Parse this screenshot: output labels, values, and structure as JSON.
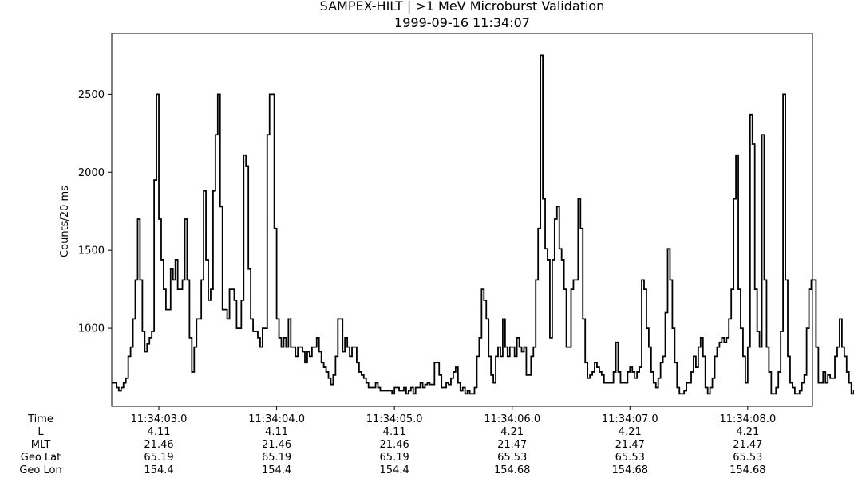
{
  "chart_data": {
    "type": "line",
    "step": true,
    "title": "SAMPEX-HILT | >1 MeV Microburst Validation",
    "subtitle": "1999-09-16 11:34:07",
    "xlabel": "",
    "ylabel": "Counts/20 ms",
    "xlim": [
      2.6,
      8.55
    ],
    "ylim": [
      500,
      2890
    ],
    "yticks": [
      1000,
      1500,
      2000,
      2500
    ],
    "sample_interval_s": 0.02,
    "x_start_s": 2.6,
    "x_axis_note": "x = seconds after 11:34:00",
    "xtick_seconds": [
      3,
      4,
      5,
      6,
      7,
      8
    ],
    "series": [
      {
        "name": "",
        "color": "#000000",
        "values": [
          650,
          650,
          620,
          600,
          620,
          650,
          680,
          820,
          880,
          1060,
          1310,
          1700,
          1310,
          980,
          850,
          900,
          940,
          980,
          1950,
          2500,
          1700,
          1440,
          1250,
          1120,
          1120,
          1380,
          1310,
          1440,
          1250,
          1250,
          1310,
          1700,
          1310,
          940,
          720,
          880,
          1060,
          1060,
          1310,
          1880,
          1440,
          1180,
          1250,
          1880,
          2240,
          2500,
          1780,
          1120,
          1120,
          1060,
          1250,
          1250,
          1180,
          1000,
          1000,
          1180,
          2110,
          2040,
          1380,
          1060,
          980,
          980,
          940,
          880,
          1000,
          1000,
          2240,
          2500,
          2500,
          1640,
          1060,
          940,
          880,
          940,
          880,
          1060,
          880,
          880,
          820,
          880,
          880,
          850,
          780,
          850,
          820,
          880,
          880,
          940,
          850,
          780,
          750,
          720,
          680,
          640,
          700,
          820,
          1060,
          1060,
          850,
          940,
          880,
          820,
          880,
          880,
          780,
          720,
          700,
          680,
          650,
          620,
          620,
          620,
          650,
          620,
          600,
          600,
          600,
          600,
          600,
          580,
          620,
          620,
          600,
          600,
          620,
          580,
          600,
          620,
          580,
          620,
          620,
          650,
          620,
          640,
          650,
          640,
          640,
          780,
          780,
          700,
          620,
          620,
          650,
          640,
          680,
          720,
          750,
          650,
          600,
          620,
          580,
          600,
          580,
          580,
          620,
          820,
          940,
          1250,
          1180,
          1060,
          820,
          700,
          650,
          820,
          880,
          820,
          1060,
          880,
          820,
          880,
          880,
          820,
          940,
          880,
          850,
          880,
          700,
          700,
          820,
          880,
          1310,
          1640,
          2750,
          1830,
          1510,
          1440,
          940,
          1440,
          1700,
          1780,
          1510,
          1440,
          1250,
          880,
          880,
          1250,
          1310,
          1310,
          1830,
          1640,
          1060,
          780,
          680,
          700,
          720,
          780,
          750,
          720,
          700,
          650,
          650,
          650,
          650,
          720,
          910,
          720,
          650,
          650,
          650,
          720,
          750,
          720,
          680,
          720,
          750,
          1310,
          1250,
          1000,
          880,
          720,
          650,
          620,
          680,
          780,
          820,
          1100,
          1510,
          1310,
          1000,
          780,
          620,
          580,
          580,
          600,
          650,
          650,
          720,
          820,
          750,
          880,
          940,
          820,
          620,
          580,
          620,
          680,
          820,
          880,
          910,
          940,
          910,
          940,
          1060,
          1250,
          1830,
          2110,
          1250,
          1000,
          820,
          650,
          880,
          2370,
          2180,
          1250,
          980,
          880,
          2240,
          1310,
          880,
          720,
          580,
          580,
          620,
          720,
          980,
          2500,
          1310,
          820,
          650,
          620,
          580,
          580,
          600,
          650,
          700,
          1000,
          1250,
          1310,
          1310,
          880,
          650,
          650,
          720,
          650,
          700,
          680,
          680,
          820,
          880,
          1060,
          880,
          820,
          720,
          650,
          580,
          600,
          650,
          580,
          650,
          600,
          650,
          680,
          620
        ]
      }
    ],
    "grid": false,
    "legend": "none"
  },
  "ephemeris": {
    "row_labels": [
      "Time",
      "L",
      "MLT",
      "Geo Lat",
      "Geo Lon"
    ],
    "columns": [
      {
        "Time": "11:34:03.0",
        "L": "4.11",
        "MLT": "21.46",
        "Geo Lat": "65.19",
        "Geo Lon": "154.4"
      },
      {
        "Time": "11:34:04.0",
        "L": "4.11",
        "MLT": "21.46",
        "Geo Lat": "65.19",
        "Geo Lon": "154.4"
      },
      {
        "Time": "11:34:05.0",
        "L": "4.11",
        "MLT": "21.46",
        "Geo Lat": "65.19",
        "Geo Lon": "154.4"
      },
      {
        "Time": "11:34:06.0",
        "L": "4.21",
        "MLT": "21.47",
        "Geo Lat": "65.53",
        "Geo Lon": "154.68"
      },
      {
        "Time": "11:34:07.0",
        "L": "4.21",
        "MLT": "21.47",
        "Geo Lat": "65.53",
        "Geo Lon": "154.68"
      },
      {
        "Time": "11:34:08.0",
        "L": "4.21",
        "MLT": "21.47",
        "Geo Lat": "65.53",
        "Geo Lon": "154.68"
      }
    ]
  }
}
